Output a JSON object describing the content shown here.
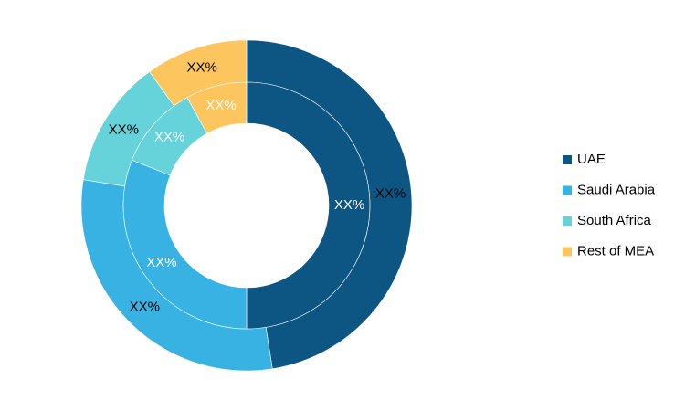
{
  "chart_data": {
    "type": "donut",
    "categories": [
      "UAE",
      "Saudi Arabia",
      "South Africa",
      "Rest of MEA"
    ],
    "colors": [
      "#0d5582",
      "#38b2e3",
      "#66d2da",
      "#fdc55e"
    ],
    "rings": [
      {
        "values": [
          47.5,
          30,
          12.5,
          10
        ],
        "value_labels": [
          "XX%",
          "XX%",
          "XX%",
          "XX%"
        ]
      },
      {
        "values": [
          50,
          31,
          11,
          8
        ],
        "value_labels": [
          "XX%",
          "XX%",
          "XX%",
          "XX%"
        ]
      }
    ],
    "legend": "right"
  }
}
